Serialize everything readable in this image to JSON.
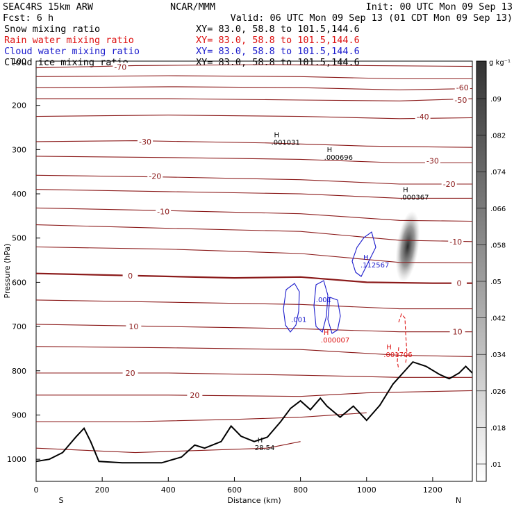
{
  "header": {
    "left1": "SEAC4RS 15km ARW",
    "center1": "NCAR/MMM",
    "right1": "Init: 00 UTC Mon 09 Sep 13",
    "left2": "Fcst:     6 h",
    "right2": "Valid: 06 UTC Mon 09 Sep 13 (01 CDT Mon 09 Sep 13)",
    "fields": [
      {
        "name": "Snow mixing ratio",
        "xy": "XY=  83.0, 58.8 to 101.5,144.6",
        "color": "#000000"
      },
      {
        "name": "Rain water mixing ratio",
        "xy": "XY=  83.0, 58.8 to 101.5,144.6",
        "color": "#dd1111"
      },
      {
        "name": "Cloud water mixing ratio",
        "xy": "XY=  83.0, 58.8 to 101.5,144.6",
        "color": "#1a1acc"
      },
      {
        "name": "Cloud ice mixing ratio",
        "xy": "XY=  83.0, 58.8 to 101.5,144.6",
        "color": "#000000"
      }
    ]
  },
  "colors": {
    "isotherm": "#8b1a1a",
    "terrain": "#000000",
    "cloud_water": "#1a1acc",
    "rain": "#dd1111",
    "ice_shading": "#333333"
  },
  "chart_data": {
    "type": "cross-section",
    "xlabel": "Distance (km)",
    "ylabel": "Pressure (hPa)",
    "xlim": [
      0,
      1320
    ],
    "ylim": [
      1050,
      100
    ],
    "x_ticks": [
      0,
      200,
      400,
      600,
      800,
      1000,
      1200
    ],
    "y_ticks": [
      200,
      300,
      400,
      500,
      600,
      700,
      800,
      900,
      1000
    ],
    "y_top_label": "100",
    "x_end_labels": {
      "left": "S",
      "right": "N"
    },
    "isotherms": [
      {
        "level": -70,
        "points": [
          [
            0,
            115
          ],
          [
            300,
            110
          ],
          [
            700,
            108
          ],
          [
            1000,
            110
          ],
          [
            1320,
            112
          ]
        ]
      },
      {
        "level": -60,
        "points": [
          [
            0,
            135
          ],
          [
            400,
            133
          ],
          [
            800,
            135
          ],
          [
            1100,
            140
          ],
          [
            1320,
            140
          ]
        ]
      },
      {
        "level": -60,
        "points": [
          [
            0,
            160
          ],
          [
            400,
            158
          ],
          [
            800,
            160
          ],
          [
            1100,
            165
          ],
          [
            1320,
            162
          ]
        ]
      },
      {
        "level": -50,
        "points": [
          [
            0,
            185
          ],
          [
            400,
            185
          ],
          [
            800,
            188
          ],
          [
            1100,
            190
          ],
          [
            1320,
            185
          ]
        ]
      },
      {
        "level": -40,
        "points": [
          [
            0,
            225
          ],
          [
            400,
            222
          ],
          [
            800,
            225
          ],
          [
            1100,
            230
          ],
          [
            1320,
            228
          ]
        ]
      },
      {
        "level": -30,
        "points": [
          [
            0,
            282
          ],
          [
            300,
            280
          ],
          [
            700,
            285
          ],
          [
            1000,
            292
          ],
          [
            1320,
            295
          ]
        ]
      },
      {
        "level": -30,
        "points": [
          [
            0,
            315
          ],
          [
            400,
            318
          ],
          [
            800,
            322
          ],
          [
            1100,
            330
          ],
          [
            1320,
            330
          ]
        ]
      },
      {
        "level": -20,
        "points": [
          [
            0,
            358
          ],
          [
            400,
            362
          ],
          [
            800,
            368
          ],
          [
            1100,
            378
          ],
          [
            1320,
            378
          ]
        ]
      },
      {
        "level": -20,
        "points": [
          [
            0,
            390
          ],
          [
            400,
            395
          ],
          [
            800,
            400
          ],
          [
            1100,
            410
          ],
          [
            1320,
            410
          ]
        ]
      },
      {
        "level": -10,
        "points": [
          [
            0,
            432
          ],
          [
            400,
            438
          ],
          [
            800,
            445
          ],
          [
            1100,
            460
          ],
          [
            1320,
            462
          ]
        ]
      },
      {
        "level": -10,
        "points": [
          [
            0,
            470
          ],
          [
            400,
            478
          ],
          [
            800,
            485
          ],
          [
            1100,
            505
          ],
          [
            1320,
            508
          ]
        ]
      },
      {
        "level": -10,
        "points": [
          [
            0,
            520
          ],
          [
            400,
            525
          ],
          [
            800,
            535
          ],
          [
            1100,
            555
          ],
          [
            1320,
            556
          ]
        ]
      },
      {
        "level": 0,
        "points": [
          [
            0,
            580
          ],
          [
            300,
            585
          ],
          [
            600,
            590
          ],
          [
            800,
            588
          ],
          [
            1000,
            600
          ],
          [
            1200,
            602
          ],
          [
            1320,
            602
          ]
        ]
      },
      {
        "level": 10,
        "points": [
          [
            0,
            640
          ],
          [
            400,
            645
          ],
          [
            800,
            650
          ],
          [
            1100,
            660
          ],
          [
            1320,
            660
          ]
        ]
      },
      {
        "level": 10,
        "points": [
          [
            0,
            695
          ],
          [
            400,
            700
          ],
          [
            800,
            705
          ],
          [
            1100,
            712
          ],
          [
            1320,
            712
          ]
        ]
      },
      {
        "level": 10,
        "points": [
          [
            0,
            745
          ],
          [
            400,
            748
          ],
          [
            800,
            752
          ],
          [
            1100,
            765
          ],
          [
            1320,
            768
          ]
        ]
      },
      {
        "level": 20,
        "points": [
          [
            0,
            805
          ],
          [
            400,
            805
          ],
          [
            800,
            810
          ],
          [
            1100,
            815
          ],
          [
            1320,
            815
          ]
        ]
      },
      {
        "level": 20,
        "points": [
          [
            0,
            855
          ],
          [
            400,
            855
          ],
          [
            800,
            858
          ],
          [
            1000,
            850
          ],
          [
            1320,
            845
          ]
        ]
      },
      {
        "level": 20,
        "points": [
          [
            0,
            915
          ],
          [
            300,
            915
          ],
          [
            600,
            910
          ],
          [
            800,
            905
          ],
          [
            1000,
            895
          ]
        ]
      },
      {
        "level": 30,
        "points": [
          [
            0,
            975
          ],
          [
            300,
            985
          ],
          [
            500,
            980
          ],
          [
            700,
            975
          ],
          [
            800,
            960
          ]
        ]
      }
    ],
    "isotherm_labels": [
      {
        "text": "-70",
        "x": 255,
        "p": 113
      },
      {
        "text": "-60",
        "x": 1290,
        "p": 160
      },
      {
        "text": "-50",
        "x": 1285,
        "p": 188
      },
      {
        "text": "-40",
        "x": 1170,
        "p": 226
      },
      {
        "text": "-30",
        "x": 330,
        "p": 282
      },
      {
        "text": "-30",
        "x": 1200,
        "p": 325
      },
      {
        "text": "-20",
        "x": 360,
        "p": 360
      },
      {
        "text": "-20",
        "x": 1250,
        "p": 378
      },
      {
        "text": "-10",
        "x": 385,
        "p": 440
      },
      {
        "text": "-10",
        "x": 1270,
        "p": 508
      },
      {
        "text": "0",
        "x": 285,
        "p": 585
      },
      {
        "text": "0",
        "x": 1280,
        "p": 602
      },
      {
        "text": "10",
        "x": 295,
        "p": 700
      },
      {
        "text": "10",
        "x": 1275,
        "p": 712
      },
      {
        "text": "20",
        "x": 285,
        "p": 805
      },
      {
        "text": "20",
        "x": 480,
        "p": 855
      }
    ],
    "terrain": [
      [
        0,
        1005
      ],
      [
        40,
        1000
      ],
      [
        80,
        985
      ],
      [
        120,
        950
      ],
      [
        145,
        930
      ],
      [
        165,
        960
      ],
      [
        190,
        1005
      ],
      [
        260,
        1008
      ],
      [
        380,
        1008
      ],
      [
        440,
        995
      ],
      [
        480,
        968
      ],
      [
        510,
        975
      ],
      [
        560,
        960
      ],
      [
        590,
        925
      ],
      [
        620,
        948
      ],
      [
        660,
        960
      ],
      [
        700,
        950
      ],
      [
        740,
        915
      ],
      [
        770,
        885
      ],
      [
        800,
        868
      ],
      [
        830,
        888
      ],
      [
        860,
        862
      ],
      [
        880,
        880
      ],
      [
        920,
        905
      ],
      [
        960,
        880
      ],
      [
        1000,
        912
      ],
      [
        1040,
        878
      ],
      [
        1080,
        830
      ],
      [
        1110,
        805
      ],
      [
        1140,
        780
      ],
      [
        1180,
        790
      ],
      [
        1220,
        808
      ],
      [
        1250,
        818
      ],
      [
        1280,
        805
      ],
      [
        1300,
        790
      ],
      [
        1320,
        805
      ]
    ],
    "highs": [
      {
        "letter": "H",
        "value": ".001031",
        "x": 720,
        "p": 278,
        "color": "#000000"
      },
      {
        "letter": "H",
        "value": ".000696",
        "x": 880,
        "p": 312,
        "color": "#000000"
      },
      {
        "letter": "H",
        "value": ".000367",
        "x": 1110,
        "p": 402,
        "color": "#000000"
      },
      {
        "letter": "H",
        "value": ".112567",
        "x": 990,
        "p": 555,
        "color": "#1a1acc"
      },
      {
        "letter": "H",
        "value": ".000007",
        "x": 870,
        "p": 725,
        "color": "#dd1111"
      },
      {
        "letter": "H",
        "value": ".001706",
        "x": 1060,
        "p": 758,
        "color": "#dd1111"
      },
      {
        "letter": "H",
        "value": "28.54",
        "x": 670,
        "p": 968,
        "color": "#000000"
      }
    ],
    "cloud_water_labels": [
      {
        "text": ".001",
        "x": 795,
        "p": 690
      },
      {
        "text": ".001",
        "x": 870,
        "p": 645
      }
    ],
    "colorbar": {
      "unit": "g kg⁻¹",
      "levels": [
        ".01",
        ".018",
        ".026",
        ".034",
        ".042",
        ".05",
        ".058",
        ".066",
        ".074",
        ".082",
        ".09"
      ]
    }
  }
}
